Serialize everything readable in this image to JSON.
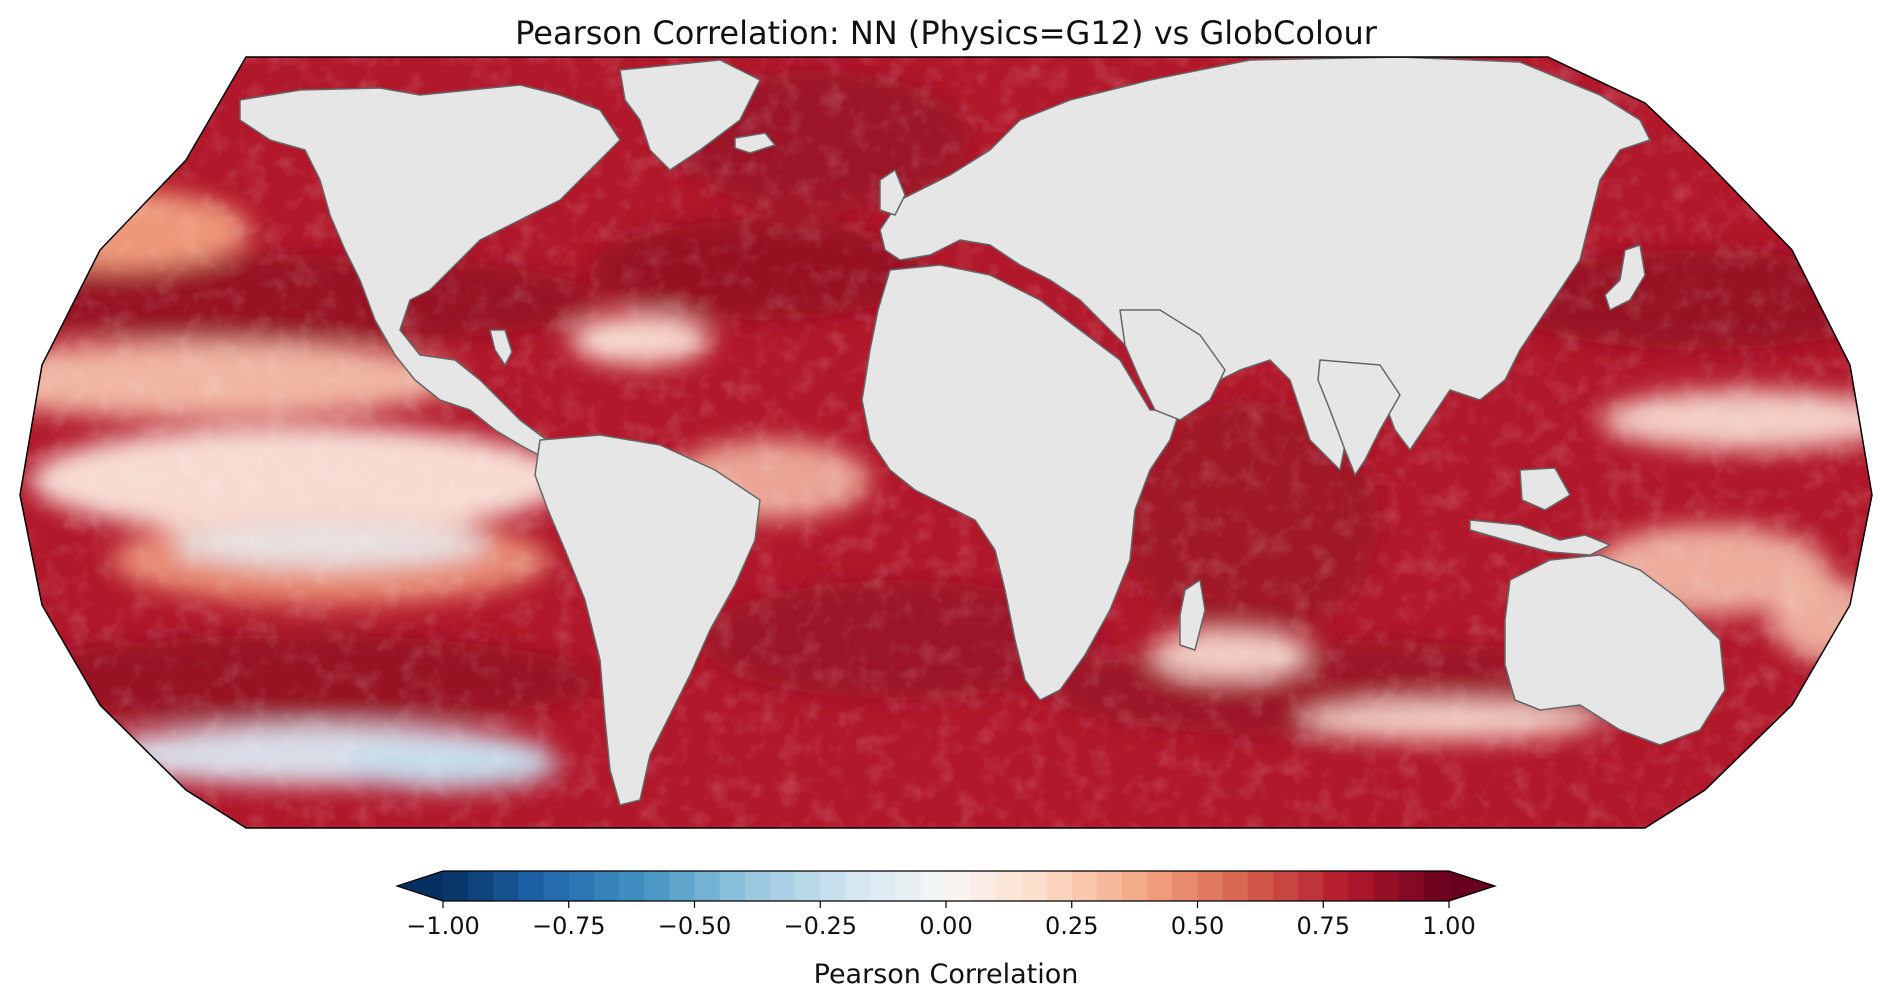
{
  "title": "Pearson Correlation: NN (Physics=G12) vs GlobColour",
  "colorbar": {
    "label": "Pearson Correlation",
    "vmin": -1.0,
    "vmax": 1.0,
    "bins": 40,
    "extend": "both",
    "colormap": "RdBu_r",
    "tick_values": [
      -1.0,
      -0.75,
      -0.5,
      -0.25,
      0.0,
      0.25,
      0.5,
      0.75,
      1.0
    ],
    "tick_labels": [
      "−1.00",
      "−0.75",
      "−0.50",
      "−0.25",
      "0.00",
      "0.25",
      "0.50",
      "0.75",
      "1.00"
    ]
  },
  "map": {
    "projection": "Robinson",
    "land_color": "#e6e6e6",
    "coastline_color": "#555555",
    "ocean_field": "ocean chlorophyll Pearson correlation, mostly 0.4 to 1.0 (dark red); near 0 or slightly negative bands in the subtropical South Pacific and equatorial Pacific"
  },
  "chart_data": {
    "type": "heatmap",
    "title": "Pearson Correlation: NN (Physics=G12) vs GlobColour",
    "value_range": [
      -1.0,
      1.0
    ],
    "colorbar_label": "Pearson Correlation",
    "colorbar_ticks": [
      -1.0,
      -0.75,
      -0.5,
      -0.25,
      0.0,
      0.25,
      0.5,
      0.75,
      1.0
    ]
  }
}
